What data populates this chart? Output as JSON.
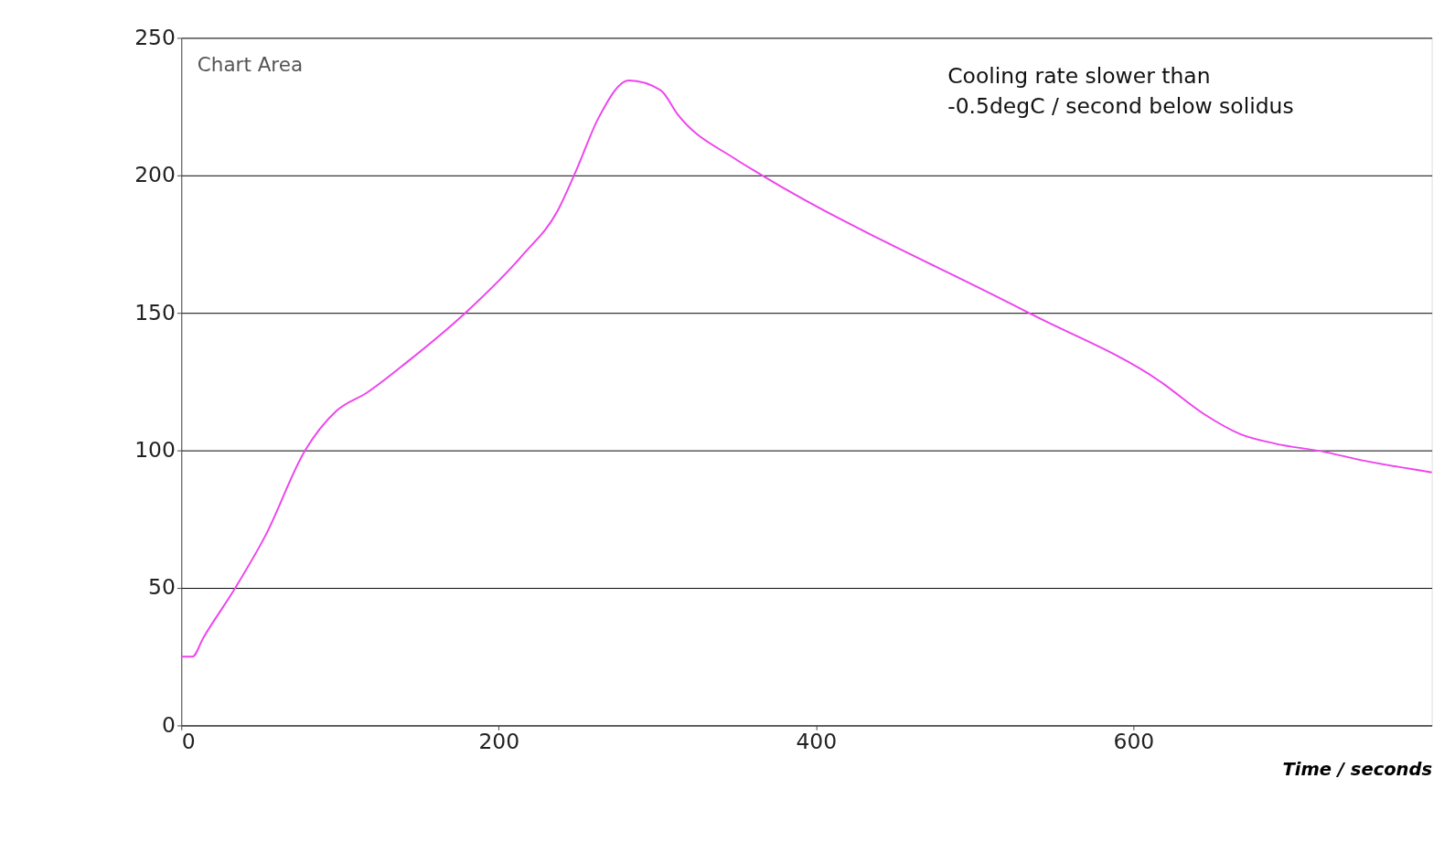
{
  "chart_data": {
    "type": "line",
    "xlabel": "Time / seconds",
    "x": [
      0,
      7,
      14,
      34,
      53,
      78,
      98,
      117,
      142,
      179,
      215,
      237,
      249,
      263,
      282,
      302,
      313,
      349,
      366,
      534,
      617,
      645,
      667,
      689,
      720,
      739,
      788
    ],
    "series": [
      {
        "color": "#ee44ee",
        "values": [
          25,
          25,
          32,
          50,
          69,
          100,
          114.5,
          121,
          132,
          150,
          171,
          187,
          202,
          221,
          234.5,
          231,
          222,
          206,
          200,
          150,
          125,
          113,
          106,
          102.5,
          99.5,
          97,
          92
        ]
      }
    ],
    "xlim": [
      0,
      788
    ],
    "xticks": [
      0,
      200,
      400,
      600
    ],
    "ylim": [
      0,
      250
    ],
    "yticks": [
      0,
      50,
      100,
      150,
      200,
      250
    ],
    "grid": "y",
    "marker": "none",
    "line_style": "solid",
    "annotations": [
      "Cooling rate slower than\n-0.5degC / second below solidus",
      "Chart Area"
    ]
  }
}
